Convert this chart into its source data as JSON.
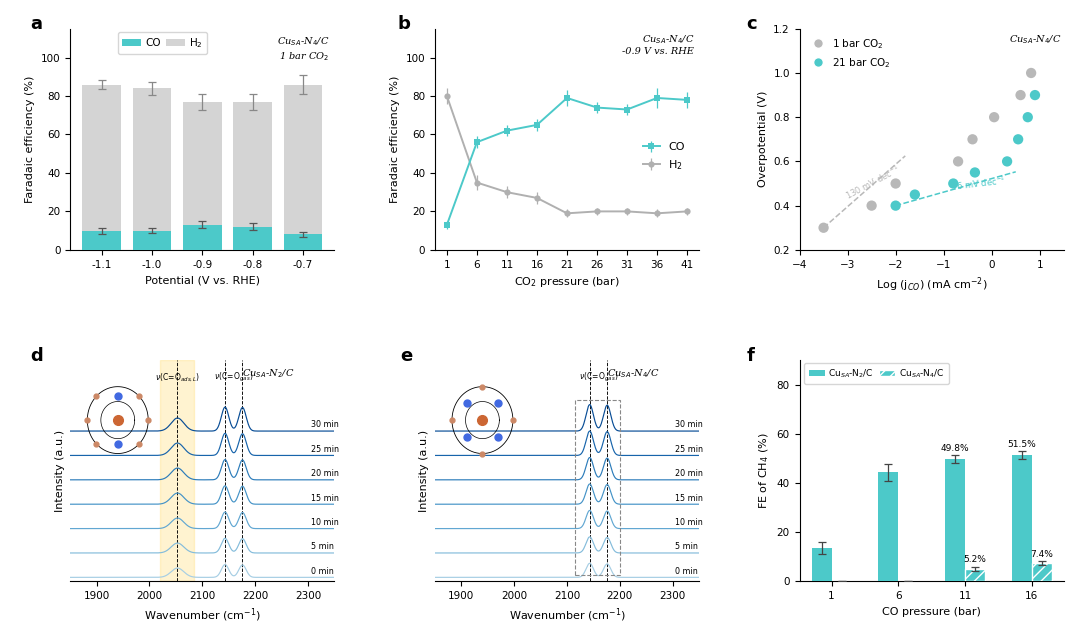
{
  "panel_a": {
    "potentials": [
      -1.1,
      -1.0,
      -0.9,
      -0.8,
      -0.7
    ],
    "CO_values": [
      10,
      10,
      13,
      12,
      8
    ],
    "CO_errors": [
      1.5,
      1.2,
      1.8,
      1.8,
      1.2
    ],
    "H2_values": [
      86,
      84,
      77,
      77,
      86
    ],
    "H2_errors": [
      2.5,
      3.5,
      4,
      4,
      5
    ],
    "CO_color": "#4cc9c9",
    "H2_color": "#d4d4d4",
    "xlabel": "Potential (V vs. RHE)",
    "ylabel": "Faradaic efficiency (%)",
    "ylim": [
      0,
      115
    ],
    "yticks": [
      0,
      20,
      40,
      60,
      80,
      100
    ]
  },
  "panel_b": {
    "pressures": [
      1,
      6,
      11,
      16,
      21,
      26,
      31,
      36,
      41
    ],
    "CO_values": [
      13,
      56,
      62,
      65,
      79,
      74,
      73,
      79,
      78
    ],
    "CO_errors": [
      2,
      3,
      3,
      3,
      4,
      3,
      3,
      5,
      4
    ],
    "H2_values": [
      80,
      35,
      30,
      27,
      19,
      20,
      20,
      19,
      20
    ],
    "H2_errors": [
      4,
      4,
      3,
      3,
      2,
      2,
      2,
      2,
      2
    ],
    "CO_color": "#4cc9c9",
    "H2_color": "#b0b0b0",
    "xlabel": "CO$_2$ pressure (bar)",
    "ylabel": "Faradaic efficiency (%)",
    "ylim": [
      0,
      115
    ],
    "yticks": [
      0,
      20,
      40,
      60,
      80,
      100
    ]
  },
  "panel_c": {
    "gray_x": [
      -3.5,
      -2.5,
      -2.0,
      -0.7,
      -0.4,
      0.05,
      0.6,
      0.82
    ],
    "gray_y": [
      0.3,
      0.4,
      0.5,
      0.6,
      0.7,
      0.8,
      0.9,
      1.0
    ],
    "cyan_x": [
      -2.0,
      -1.6,
      -0.8,
      -0.35,
      0.32,
      0.55,
      0.75,
      0.9
    ],
    "cyan_y": [
      0.4,
      0.45,
      0.5,
      0.55,
      0.6,
      0.7,
      0.8,
      0.9
    ],
    "gray_tafel_x1": -3.5,
    "gray_tafel_x2": -1.8,
    "gray_tafel_y1": 0.3,
    "gray_tafel_y2": 0.625,
    "cyan_tafel_x1": -2.0,
    "cyan_tafel_x2": 0.5,
    "cyan_tafel_y1": 0.4,
    "cyan_tafel_y2": 0.553,
    "gray_color": "#b8b8b8",
    "cyan_color": "#4cc9c9",
    "xlabel": "Log (j$_{CO}$) (mA cm$^{-2}$)",
    "ylabel": "Overpotential (V)",
    "xlim": [
      -4,
      1.5
    ],
    "ylim": [
      0.2,
      1.2
    ],
    "yticks": [
      0.2,
      0.4,
      0.6,
      0.8,
      1.0,
      1.2
    ],
    "xticks": [
      -4,
      -3,
      -2,
      -1,
      0,
      1
    ]
  },
  "panel_f": {
    "pressures": [
      1,
      6,
      11,
      16
    ],
    "N2C_values": [
      13.5,
      44.5,
      49.8,
      51.5
    ],
    "N2C_errors": [
      2.5,
      3.5,
      1.5,
      1.5
    ],
    "N4C_values": [
      0.3,
      0.3,
      5.2,
      7.4
    ],
    "N4C_errors": [
      0,
      0,
      0.8,
      0.8
    ],
    "bar_color": "#4cc9c9",
    "xlabel": "CO pressure (bar)",
    "ylabel": "FE of CH$_4$ (%)",
    "ylim": [
      0,
      90
    ],
    "yticks": [
      0,
      20,
      40,
      60,
      80
    ]
  }
}
